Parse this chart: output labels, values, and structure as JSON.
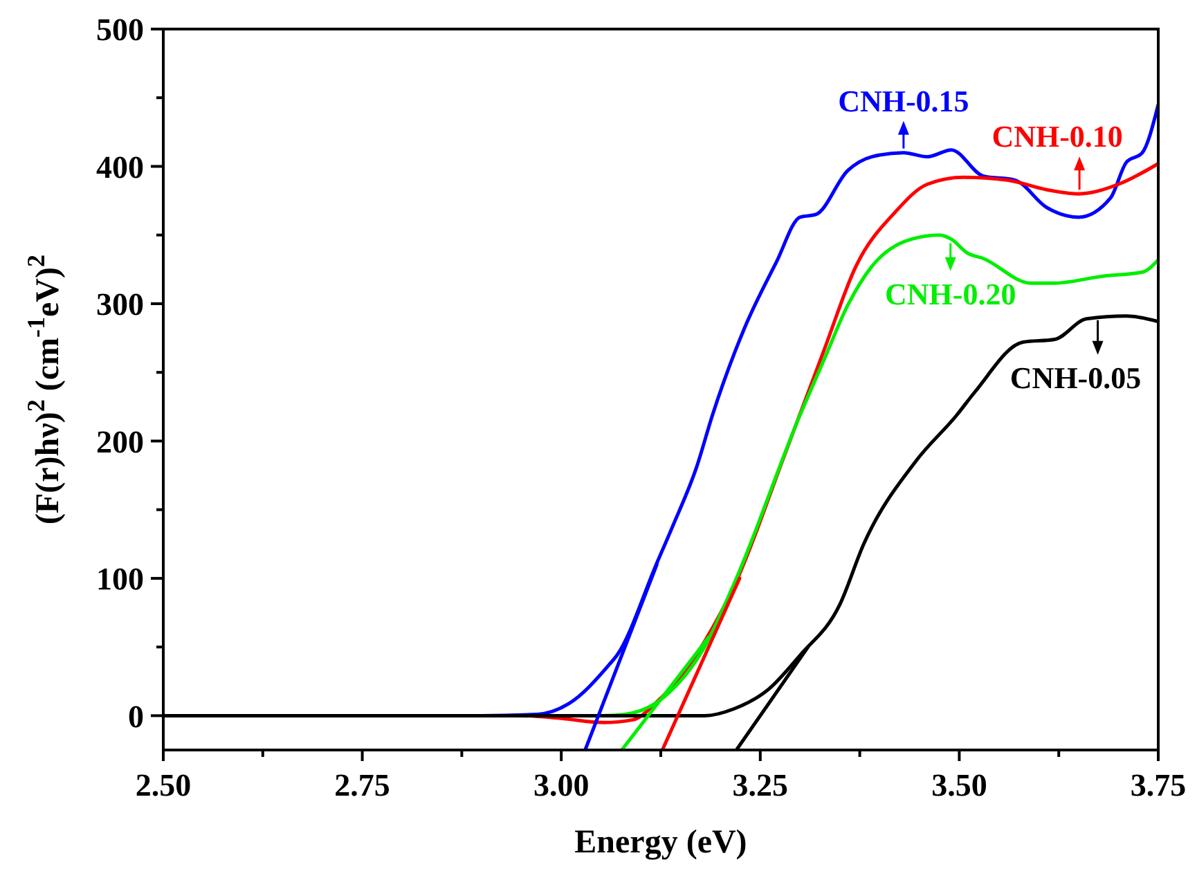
{
  "chart_data": {
    "type": "line",
    "xlabel": "Energy (eV)",
    "ylabel": "(F(r)hν)$^{2}$ (cm$^{-1}$eV)$^{2}$",
    "xlim": [
      2.5,
      3.75
    ],
    "ylim": [
      -25,
      500
    ],
    "xticks": [
      {
        "value": 2.5,
        "label": "2.50"
      },
      {
        "value": 2.625,
        "label": null
      },
      {
        "value": 2.75,
        "label": "2.75"
      },
      {
        "value": 2.875,
        "label": null
      },
      {
        "value": 3,
        "label": "3.00"
      },
      {
        "value": 3.125,
        "label": null
      },
      {
        "value": 3.25,
        "label": "3.25"
      },
      {
        "value": 3.375,
        "label": null
      },
      {
        "value": 3.5,
        "label": "3.50"
      },
      {
        "value": 3.625,
        "label": null
      },
      {
        "value": 3.75,
        "label": "3.75"
      }
    ],
    "yticks": [
      0,
      {
        "value": 50,
        "label": null
      },
      100,
      {
        "value": 150,
        "label": null
      },
      200,
      {
        "value": 250,
        "label": null
      },
      300,
      {
        "value": 350,
        "label": null
      },
      400,
      {
        "value": 450,
        "label": null
      },
      500
    ],
    "grid": false,
    "marker": "none",
    "line_style": "solid",
    "series": [
      {
        "color": "#0000ff",
        "x": [
          2.5,
          2.9,
          2.97,
          3.01,
          3.06,
          3.07,
          3.12,
          3.14,
          3.17,
          3.19,
          3.23,
          3.27,
          3.3,
          3.32,
          3.36,
          3.39,
          3.43,
          3.46,
          3.49,
          3.53,
          3.57,
          3.61,
          3.65,
          3.69,
          3.71,
          3.73,
          3.75
        ],
        "values": [
          0,
          0,
          1,
          9,
          37,
          44,
          111,
          138,
          181,
          219,
          282,
          330,
          363,
          365,
          397,
          407,
          410,
          407,
          412,
          393,
          390,
          370,
          363,
          377,
          403,
          410,
          445
        ]
      },
      {
        "color": "#ff0000",
        "x": [
          2.5,
          2.95,
          3,
          3.053,
          3.09,
          3.12,
          3.18,
          3.22,
          3.28,
          3.33,
          3.37,
          3.42,
          3.46,
          3.505,
          3.56,
          3.61,
          3.65,
          3.7,
          3.75
        ],
        "values": [
          0,
          0,
          -2,
          -5,
          -3,
          10,
          54,
          98,
          189,
          266,
          327,
          367,
          387,
          392,
          390,
          383,
          380,
          387,
          402
        ]
      },
      {
        "color": "#00ee00",
        "x": [
          2.5,
          3,
          3.05,
          3.08,
          3.13,
          3.18,
          3.22,
          3.3,
          3.33,
          3.36,
          3.39,
          3.44,
          3.475,
          3.49,
          3.51,
          3.53,
          3.59,
          3.62,
          3.68,
          3.73,
          3.75
        ],
        "values": [
          0,
          0,
          0,
          1,
          14,
          50,
          100,
          219,
          259,
          299,
          327,
          347,
          350,
          347,
          337,
          333,
          315,
          315,
          320,
          323,
          332
        ]
      },
      {
        "color": "#000000",
        "x": [
          2.5,
          3.18,
          3.217,
          3.26,
          3.3,
          3.35,
          3.38,
          3.445,
          3.497,
          3.52,
          3.58,
          3.62,
          3.66,
          3.71,
          3.75
        ],
        "values": [
          0,
          0,
          5,
          19,
          44,
          81,
          125,
          185,
          219,
          236,
          272,
          274,
          289,
          291,
          287
        ]
      },
      {
        "color": "#0000ff",
        "x": [
          3.03,
          3.12
        ],
        "values": [
          -25,
          110
        ]
      },
      {
        "color": "#ff0000",
        "x": [
          3.127,
          3.224
        ],
        "values": [
          -25,
          100
        ]
      },
      {
        "color": "#00ee00",
        "x": [
          3.076,
          3.185
        ],
        "values": [
          -25,
          57
        ]
      },
      {
        "color": "#000000",
        "x": [
          3.22,
          3.31
        ],
        "values": [
          -25,
          50
        ]
      }
    ],
    "annotations": [
      {
        "text": "CNH-0.15",
        "x": 3.43,
        "y": 410
      },
      {
        "text": "CNH-0.10",
        "x": 3.651,
        "y": 380
      },
      {
        "text": "CNH-0.20",
        "x": 3.489,
        "y": 347
      },
      {
        "text": "CNH-0.05",
        "x": 3.674,
        "y": 291
      }
    ]
  }
}
